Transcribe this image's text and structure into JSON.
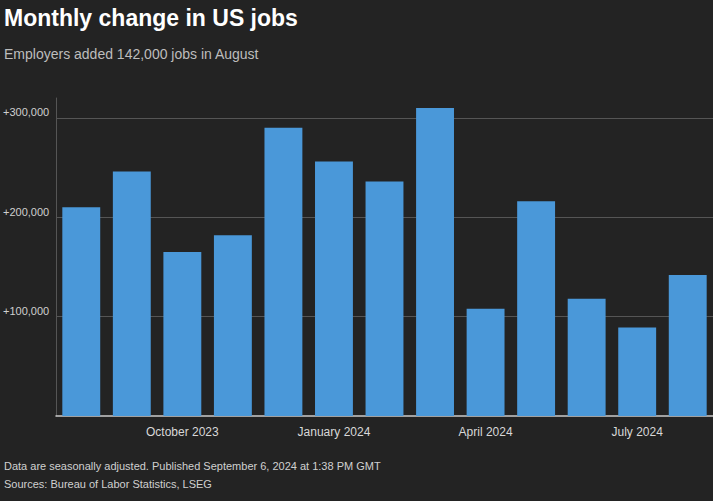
{
  "chart_data": {
    "type": "bar",
    "title": "Monthly change in US jobs",
    "subtitle": "Employers added 142,000 jobs in August",
    "annotations": [
      "Data are seasonally adjusted. Published September 6, 2024 at 1:38 PM GMT",
      "Sources: Bureau of Labor Statistics, LSEG"
    ],
    "categories": [
      null,
      null,
      "October 2023",
      null,
      null,
      "January 2024",
      null,
      null,
      "April 2024",
      null,
      null,
      "July 2024",
      null
    ],
    "values": [
      210000,
      246000,
      165000,
      182000,
      290000,
      256000,
      236000,
      310000,
      108000,
      216000,
      118000,
      89000,
      142000
    ],
    "color": "#4a98d9",
    "ylim": [
      0,
      320000
    ],
    "yticks": [
      {
        "value": 100000,
        "label": "+100,000"
      },
      {
        "value": 200000,
        "label": "+200,000"
      },
      {
        "value": 300000,
        "label": "+300,000"
      }
    ],
    "grid": true
  }
}
